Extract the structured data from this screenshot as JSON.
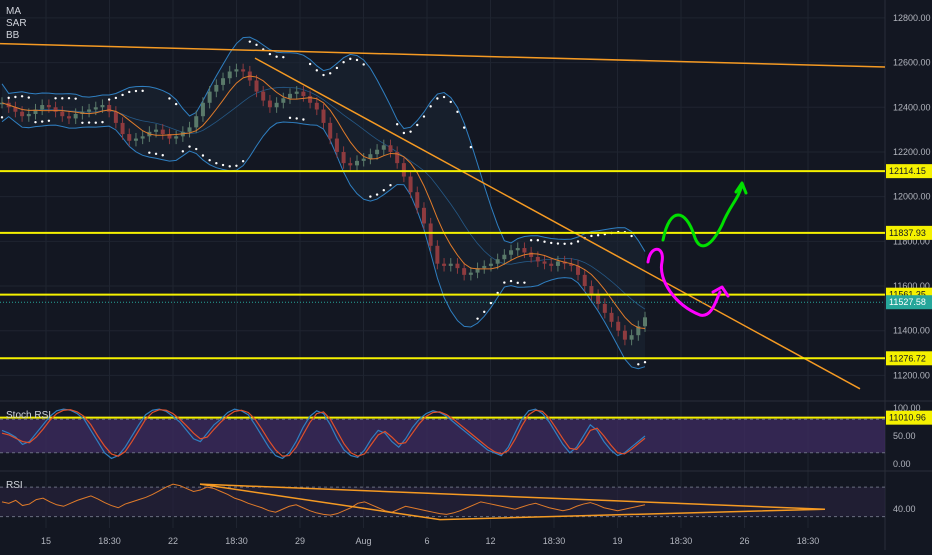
{
  "indicators": [
    "MA",
    "SAR",
    "BB"
  ],
  "colors": {
    "background": "#131722",
    "grid": "#1f2430",
    "up_candle": "#8e3b3f",
    "down_candle": "#5a7a6a",
    "bb_line": "#2f7fc1",
    "bb_fill": "#1a2433",
    "ma_line": "#e07b2a",
    "sar_dot": "#ffffff",
    "level_line": "#f5f100",
    "trend_line": "#f59a23",
    "current_price_line": "#26a69a",
    "green_draw": "#00e000",
    "magenta_draw": "#ff00ff",
    "stoch_band": "#3c2a5e",
    "stoch_k": "#2f7fc1",
    "stoch_d": "#e0502a",
    "rsi_line": "#e07b2a",
    "rsi_band": "#2a2340"
  },
  "chart_data": [
    {
      "type": "candlestick",
      "title": "",
      "price_axis": {
        "ticks": [
          "12800.00",
          "12600.00",
          "12400.00",
          "12200.00",
          "12000.00",
          "11800.00",
          "11600.00",
          "11400.00",
          "11200.00"
        ],
        "ylim": [
          11090,
          12880
        ]
      },
      "time_axis": {
        "ticks": [
          "15",
          "18:30",
          "22",
          "18:30",
          "29",
          "Aug",
          "6",
          "12",
          "18:30",
          "19",
          "18:30",
          "26",
          "18:30"
        ]
      },
      "horizontal_levels": [
        {
          "label": "12114.15",
          "value": 12114.15
        },
        {
          "label": "11837.93",
          "value": 11837.93
        },
        {
          "label": "11561.35",
          "value": 11561.35
        },
        {
          "label": "11276.72",
          "value": 11276.72
        },
        {
          "label": "11010.96",
          "value": 11010.96
        }
      ],
      "current_price": {
        "label": "11527.58",
        "value": 11527.58
      },
      "close_series": [
        12420,
        12400,
        12380,
        12360,
        12370,
        12390,
        12410,
        12400,
        12380,
        12360,
        12350,
        12370,
        12380,
        12390,
        12400,
        12410,
        12380,
        12330,
        12280,
        12250,
        12260,
        12270,
        12290,
        12300,
        12280,
        12260,
        12270,
        12290,
        12310,
        12360,
        12420,
        12470,
        12500,
        12530,
        12560,
        12570,
        12560,
        12520,
        12470,
        12430,
        12400,
        12420,
        12440,
        12460,
        12470,
        12450,
        12420,
        12390,
        12330,
        12260,
        12200,
        12150,
        12140,
        12160,
        12170,
        12190,
        12210,
        12230,
        12200,
        12150,
        12090,
        12020,
        11950,
        11880,
        11780,
        11700,
        11690,
        11700,
        11680,
        11650,
        11660,
        11680,
        11690,
        11700,
        11720,
        11740,
        11760,
        11770,
        11750,
        11730,
        11710,
        11700,
        11690,
        11710,
        11700,
        11690,
        11650,
        11600,
        11560,
        11520,
        11480,
        11440,
        11400,
        11360,
        11380,
        11420,
        11460
      ]
    },
    {
      "type": "line",
      "title": "Stoch RSI",
      "ticks": [
        "100.00",
        "50.00",
        "0.00"
      ],
      "ylim": [
        0,
        100
      ],
      "series": [
        {
          "name": "",
          "values": [
            60,
            55,
            48,
            35,
            40,
            55,
            70,
            85,
            95,
            98,
            96,
            90,
            80,
            60,
            40,
            20,
            10,
            15,
            30,
            50,
            70,
            88,
            96,
            98,
            94,
            85,
            75,
            60,
            45,
            40,
            55,
            70,
            80,
            92,
            98,
            95,
            88,
            70,
            50,
            30,
            15,
            10,
            20,
            40,
            65,
            85,
            95,
            90,
            70,
            45,
            25,
            15,
            12,
            25,
            45,
            60,
            55,
            40,
            30,
            45,
            65,
            80,
            90,
            95,
            92,
            85,
            75,
            65,
            55,
            45,
            35,
            25,
            20,
            15,
            30,
            55,
            80,
            95,
            98,
            90,
            75,
            55,
            35,
            20,
            30,
            50,
            70,
            60,
            40,
            25,
            15,
            20,
            30,
            40,
            50
          ]
        },
        {
          "name": "",
          "values": [
            55,
            52,
            46,
            40,
            38,
            48,
            62,
            78,
            90,
            96,
            97,
            93,
            85,
            70,
            50,
            32,
            18,
            14,
            22,
            40,
            60,
            80,
            92,
            97,
            96,
            90,
            80,
            68,
            55,
            45,
            48,
            62,
            75,
            86,
            94,
            96,
            92,
            80,
            62,
            42,
            25,
            14,
            15,
            30,
            52,
            74,
            90,
            93,
            80,
            58,
            36,
            20,
            14,
            18,
            35,
            52,
            58,
            48,
            36,
            38,
            55,
            72,
            85,
            92,
            93,
            88,
            80,
            70,
            60,
            50,
            40,
            30,
            22,
            18,
            24,
            44,
            68,
            88,
            96,
            94,
            82,
            64,
            45,
            28,
            26,
            40,
            60,
            64,
            50,
            34,
            20,
            18,
            26,
            36,
            46
          ]
        }
      ]
    },
    {
      "type": "line",
      "title": "RSI",
      "ticks": [
        "40.00"
      ],
      "ylim": [
        20,
        85
      ],
      "series": [
        {
          "name": "",
          "values": [
            50,
            48,
            52,
            45,
            47,
            53,
            55,
            50,
            46,
            44,
            48,
            52,
            55,
            58,
            54,
            49,
            45,
            42,
            47,
            50,
            53,
            56,
            60,
            65,
            70,
            74,
            72,
            68,
            64,
            66,
            70,
            68,
            64,
            60,
            55,
            52,
            48,
            45,
            42,
            38,
            36,
            40,
            44,
            46,
            42,
            38,
            35,
            33,
            32,
            34,
            38,
            42,
            48,
            50,
            46,
            42,
            38,
            36,
            40,
            44,
            42,
            40,
            38,
            36,
            34,
            33,
            35,
            38,
            42,
            46,
            50,
            48,
            46,
            44,
            42,
            40,
            43,
            46,
            48,
            45,
            42,
            40,
            38,
            40,
            44,
            47,
            49,
            46,
            42,
            40,
            38,
            40,
            42,
            44,
            46
          ]
        }
      ]
    }
  ]
}
